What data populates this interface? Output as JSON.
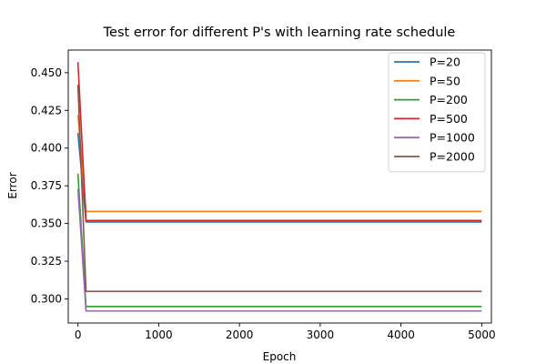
{
  "chart_data": {
    "type": "line",
    "title": "Test error for different P's with learning rate schedule",
    "xlabel": "Epoch",
    "ylabel": "Error",
    "xlim": [
      -120,
      5120
    ],
    "ylim": [
      0.284,
      0.465
    ],
    "x_ticks": [
      0,
      1000,
      2000,
      3000,
      4000,
      5000
    ],
    "y_ticks": [
      0.3,
      0.325,
      0.35,
      0.375,
      0.4,
      0.425,
      0.45
    ],
    "x_tick_labels": [
      "0",
      "1000",
      "2000",
      "3000",
      "4000",
      "5000"
    ],
    "y_tick_labels": [
      "0.300",
      "0.325",
      "0.350",
      "0.375",
      "0.400",
      "0.425",
      "0.450"
    ],
    "grid": false,
    "legend_position": "top-right",
    "series": [
      {
        "name": "P=20",
        "color": "#1f77b4",
        "x": [
          0,
          100,
          5000
        ],
        "y": [
          0.41,
          0.351,
          0.351
        ]
      },
      {
        "name": "P=50",
        "color": "#ff7f0e",
        "x": [
          0,
          100,
          5000
        ],
        "y": [
          0.422,
          0.358,
          0.358
        ]
      },
      {
        "name": "P=200",
        "color": "#2ca02c",
        "x": [
          0,
          100,
          5000
        ],
        "y": [
          0.383,
          0.295,
          0.295
        ]
      },
      {
        "name": "P=500",
        "color": "#d62728",
        "x": [
          0,
          100,
          5000
        ],
        "y": [
          0.457,
          0.352,
          0.352
        ]
      },
      {
        "name": "P=1000",
        "color": "#9467bd",
        "x": [
          0,
          100,
          5000
        ],
        "y": [
          0.373,
          0.292,
          0.292
        ]
      },
      {
        "name": "P=2000",
        "color": "#8c564b",
        "x": [
          0,
          100,
          5000
        ],
        "y": [
          0.442,
          0.305,
          0.305
        ]
      }
    ]
  }
}
